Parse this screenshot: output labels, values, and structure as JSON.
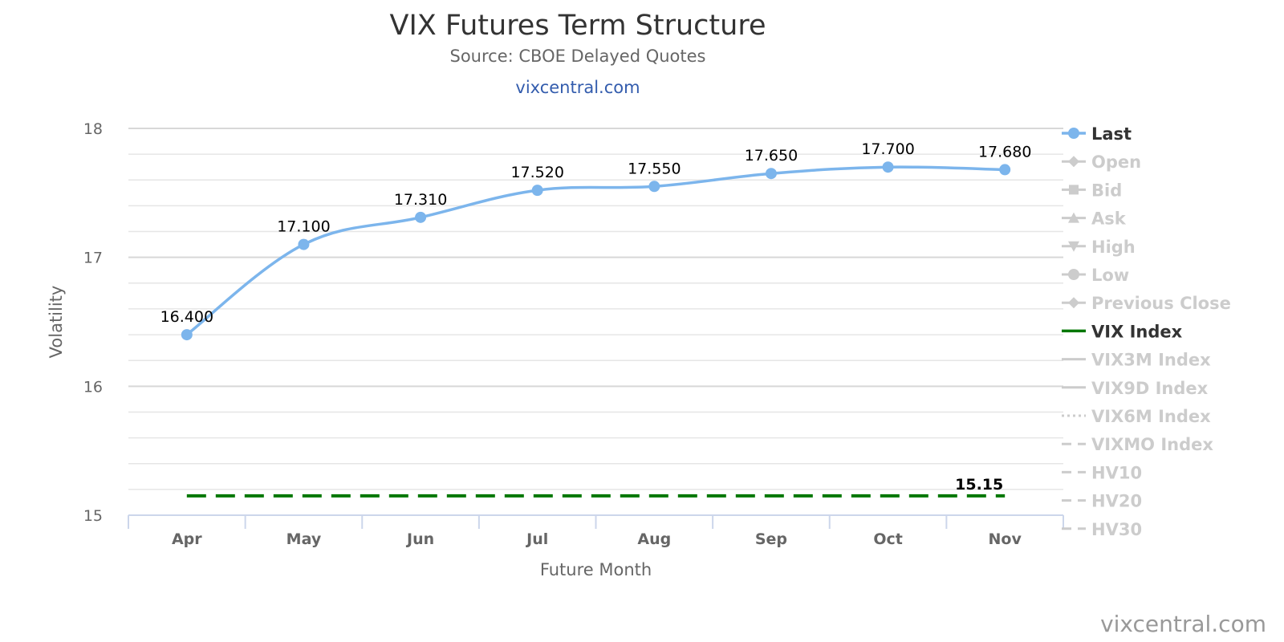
{
  "header": {
    "title": "VIX Futures Term Structure",
    "subtitle": "Source: CBOE Delayed Quotes",
    "site_link": "vixcentral.com"
  },
  "credit": "vixcentral.com",
  "chart_data": {
    "type": "line",
    "title": "VIX Futures Term Structure",
    "subtitle": "Source: CBOE Delayed Quotes",
    "xlabel": "Future Month",
    "ylabel": "Volatility",
    "categories": [
      "Apr",
      "May",
      "Jun",
      "Jul",
      "Aug",
      "Sep",
      "Oct",
      "Nov"
    ],
    "ylim": [
      15,
      18
    ],
    "yticks": [
      15,
      16,
      17,
      18
    ],
    "grid": true,
    "legend_position": "right",
    "series": [
      {
        "name": "Last",
        "color": "#7cb5ec",
        "marker": "circle",
        "values": [
          16.4,
          17.1,
          17.31,
          17.52,
          17.55,
          17.65,
          17.7,
          17.68
        ],
        "data_labels": [
          "16.400",
          "17.100",
          "17.310",
          "17.520",
          "17.550",
          "17.650",
          "17.700",
          "17.680"
        ]
      },
      {
        "name": "VIX Index",
        "color": "#007700",
        "dash": "dashed",
        "value": 15.15,
        "data_label": "15.15"
      }
    ],
    "legend": [
      {
        "name": "Last",
        "active": true,
        "symbol": "circle-line",
        "color": "#7cb5ec"
      },
      {
        "name": "Open",
        "active": false,
        "symbol": "diamond"
      },
      {
        "name": "Bid",
        "active": false,
        "symbol": "square"
      },
      {
        "name": "Ask",
        "active": false,
        "symbol": "triangle"
      },
      {
        "name": "High",
        "active": false,
        "symbol": "triangle-down"
      },
      {
        "name": "Low",
        "active": false,
        "symbol": "circle"
      },
      {
        "name": "Previous Close",
        "active": false,
        "symbol": "diamond"
      },
      {
        "name": "VIX Index",
        "active": true,
        "symbol": "line",
        "color": "#007700"
      },
      {
        "name": "VIX3M Index",
        "active": false,
        "symbol": "line"
      },
      {
        "name": "VIX9D Index",
        "active": false,
        "symbol": "line"
      },
      {
        "name": "VIX6M Index",
        "active": false,
        "symbol": "dotted"
      },
      {
        "name": "VIXMO Index",
        "active": false,
        "symbol": "dashed"
      },
      {
        "name": "HV10",
        "active": false,
        "symbol": "dashed"
      },
      {
        "name": "HV20",
        "active": false,
        "symbol": "dashed"
      },
      {
        "name": "HV30",
        "active": false,
        "symbol": "dashed"
      }
    ]
  }
}
